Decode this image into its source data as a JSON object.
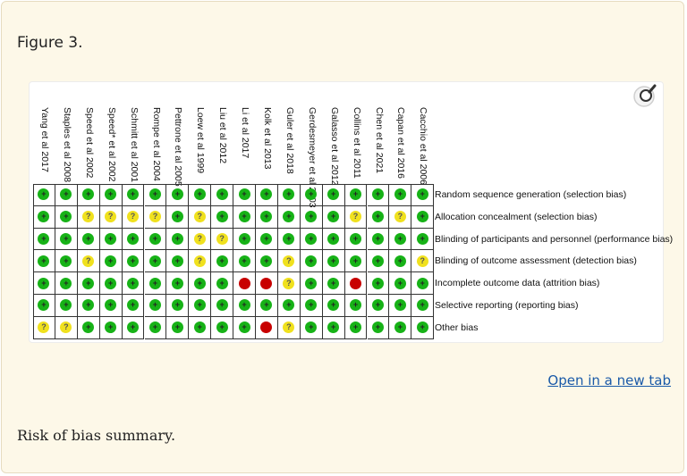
{
  "figure_title": "Figure 3.",
  "caption": "Risk of bias summary.",
  "open_link": "Open in a new tab",
  "colors": {
    "low": "#17b217",
    "unclear": "#f0e11e",
    "high": "#c80000"
  },
  "symbols": {
    "low": "+",
    "unclear": "?",
    "high": ""
  },
  "studies": [
    "Yang et al 2017",
    "Staples et al 2008",
    "Speed et al 2002",
    "Speed* et al 2002",
    "Schmitt et al 2001",
    "Rompe et al 2004",
    "Pettrone et al 2005",
    "Loew et al 1999",
    "Liu et al 2012",
    "Li et al 2017",
    "Kolk et al 2013",
    "Guler et al 2018",
    "Gerdesmeyer et al 2003",
    "Galasso et al 2012",
    "Collins et al 2011",
    "Chen et al 2021",
    "Capan et al 2016",
    "Cacchio et al 2006"
  ],
  "domains": [
    "Random sequence generation (selection bias)",
    "Allocation concealment (selection bias)",
    "Blinding of participants and personnel (performance bias)",
    "Blinding of outcome assessment (detection bias)",
    "Incomplete outcome data (attrition bias)",
    "Selective reporting (reporting bias)",
    "Other bias"
  ],
  "judgments": [
    [
      "low",
      "low",
      "low",
      "low",
      "low",
      "low",
      "low",
      "low",
      "low",
      "low",
      "low",
      "low",
      "low",
      "low",
      "low",
      "low",
      "low",
      "low"
    ],
    [
      "low",
      "low",
      "unclear",
      "unclear",
      "unclear",
      "unclear",
      "low",
      "unclear",
      "low",
      "low",
      "low",
      "low",
      "low",
      "low",
      "unclear",
      "low",
      "unclear",
      "low"
    ],
    [
      "low",
      "low",
      "low",
      "low",
      "low",
      "low",
      "low",
      "unclear",
      "unclear",
      "low",
      "low",
      "low",
      "low",
      "low",
      "low",
      "low",
      "low",
      "low"
    ],
    [
      "low",
      "low",
      "unclear",
      "low",
      "low",
      "low",
      "low",
      "unclear",
      "low",
      "low",
      "low",
      "unclear",
      "low",
      "low",
      "low",
      "low",
      "low",
      "unclear"
    ],
    [
      "low",
      "low",
      "low",
      "low",
      "low",
      "low",
      "low",
      "low",
      "low",
      "high",
      "high",
      "unclear",
      "low",
      "low",
      "high",
      "low",
      "low",
      "low"
    ],
    [
      "low",
      "low",
      "low",
      "low",
      "low",
      "low",
      "low",
      "low",
      "low",
      "low",
      "low",
      "low",
      "low",
      "low",
      "low",
      "low",
      "low",
      "low"
    ],
    [
      "unclear",
      "unclear",
      "low",
      "low",
      "low",
      "low",
      "low",
      "low",
      "low",
      "low",
      "high",
      "unclear",
      "low",
      "low",
      "low",
      "low",
      "low",
      "low"
    ]
  ]
}
